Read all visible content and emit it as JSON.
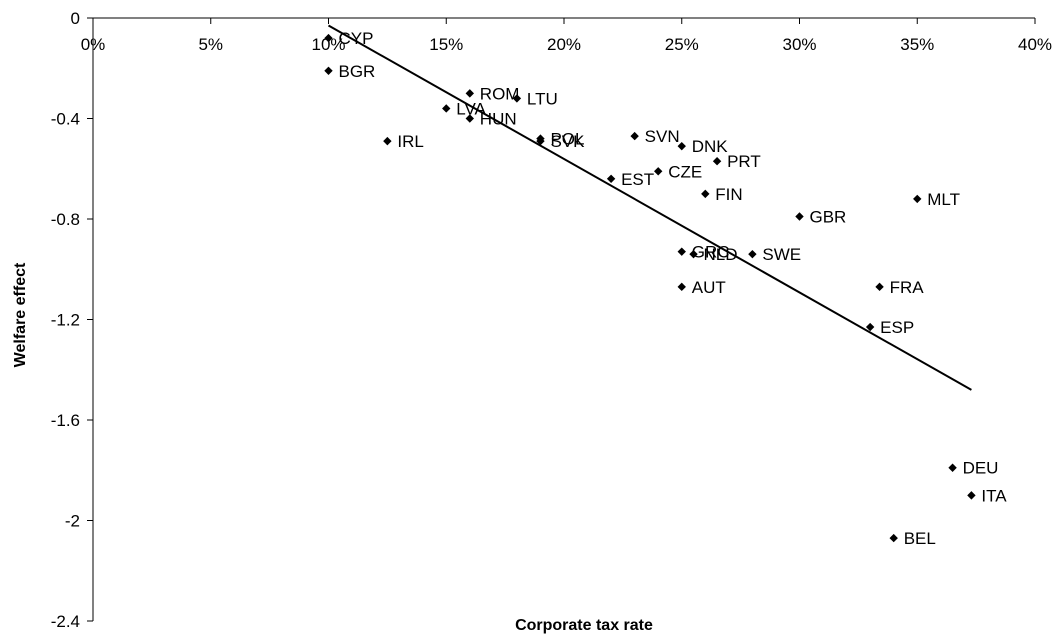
{
  "chart_data": {
    "type": "scatter",
    "title": "",
    "xlabel": "Corporate tax rate",
    "ylabel": "Welfare effect",
    "xlim": [
      0,
      0.4
    ],
    "ylim": [
      -2.4,
      0
    ],
    "x_ticks": [
      0,
      0.05,
      0.1,
      0.15,
      0.2,
      0.25,
      0.3,
      0.35,
      0.4
    ],
    "x_tick_labels": [
      "0%",
      "5%",
      "10%",
      "15%",
      "20%",
      "25%",
      "30%",
      "35%",
      "40%"
    ],
    "y_ticks": [
      0,
      -0.4,
      -0.8,
      -1.2,
      -1.6,
      -2,
      -2.4
    ],
    "y_tick_labels": [
      "0",
      "-0.4",
      "-0.8",
      "-1.2",
      "-1.6",
      "-2",
      "-2.4"
    ],
    "grid": false,
    "legend": "none",
    "marker": "diamond",
    "points": [
      {
        "label": "CYP",
        "x": 0.1,
        "y": -0.08
      },
      {
        "label": "BGR",
        "x": 0.1,
        "y": -0.21
      },
      {
        "label": "ROM",
        "x": 0.16,
        "y": -0.3
      },
      {
        "label": "LTU",
        "x": 0.18,
        "y": -0.32
      },
      {
        "label": "LVA",
        "x": 0.15,
        "y": -0.36
      },
      {
        "label": "HUN",
        "x": 0.16,
        "y": -0.4
      },
      {
        "label": "IRL",
        "x": 0.125,
        "y": -0.49
      },
      {
        "label": "POL",
        "x": 0.19,
        "y": -0.48
      },
      {
        "label": "SVK",
        "x": 0.19,
        "y": -0.49
      },
      {
        "label": "SVN",
        "x": 0.23,
        "y": -0.47
      },
      {
        "label": "DNK",
        "x": 0.25,
        "y": -0.51
      },
      {
        "label": "PRT",
        "x": 0.265,
        "y": -0.57
      },
      {
        "label": "CZE",
        "x": 0.24,
        "y": -0.61
      },
      {
        "label": "EST",
        "x": 0.22,
        "y": -0.64
      },
      {
        "label": "FIN",
        "x": 0.26,
        "y": -0.7
      },
      {
        "label": "MLT",
        "x": 0.35,
        "y": -0.72
      },
      {
        "label": "GBR",
        "x": 0.3,
        "y": -0.79
      },
      {
        "label": "GRC",
        "x": 0.25,
        "y": -0.93
      },
      {
        "label": "NLD",
        "x": 0.255,
        "y": -0.94
      },
      {
        "label": "SWE",
        "x": 0.28,
        "y": -0.94
      },
      {
        "label": "AUT",
        "x": 0.25,
        "y": -1.07
      },
      {
        "label": "FRA",
        "x": 0.334,
        "y": -1.07
      },
      {
        "label": "ESP",
        "x": 0.33,
        "y": -1.23
      },
      {
        "label": "DEU",
        "x": 0.365,
        "y": -1.79
      },
      {
        "label": "ITA",
        "x": 0.373,
        "y": -1.9
      },
      {
        "label": "BEL",
        "x": 0.34,
        "y": -2.07
      }
    ],
    "trendline": {
      "x": [
        0.1,
        0.373
      ],
      "y": [
        -0.03,
        -1.48
      ]
    }
  }
}
